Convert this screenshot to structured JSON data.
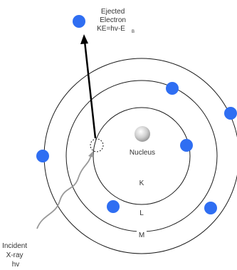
{
  "colors": {
    "electron": "#2f6ef2",
    "orbit": "#1a1a1a",
    "label": "#333333"
  },
  "ejected": {
    "lines": [
      "Ejected",
      "Electron",
      "KE=hv-E"
    ],
    "subscript": "B"
  },
  "nucleus": {
    "label": "Nucleus"
  },
  "shells": {
    "k": "K",
    "l": "L",
    "m": "M"
  },
  "incident": {
    "lines": [
      "Incident",
      "X-ray",
      "hv"
    ]
  }
}
